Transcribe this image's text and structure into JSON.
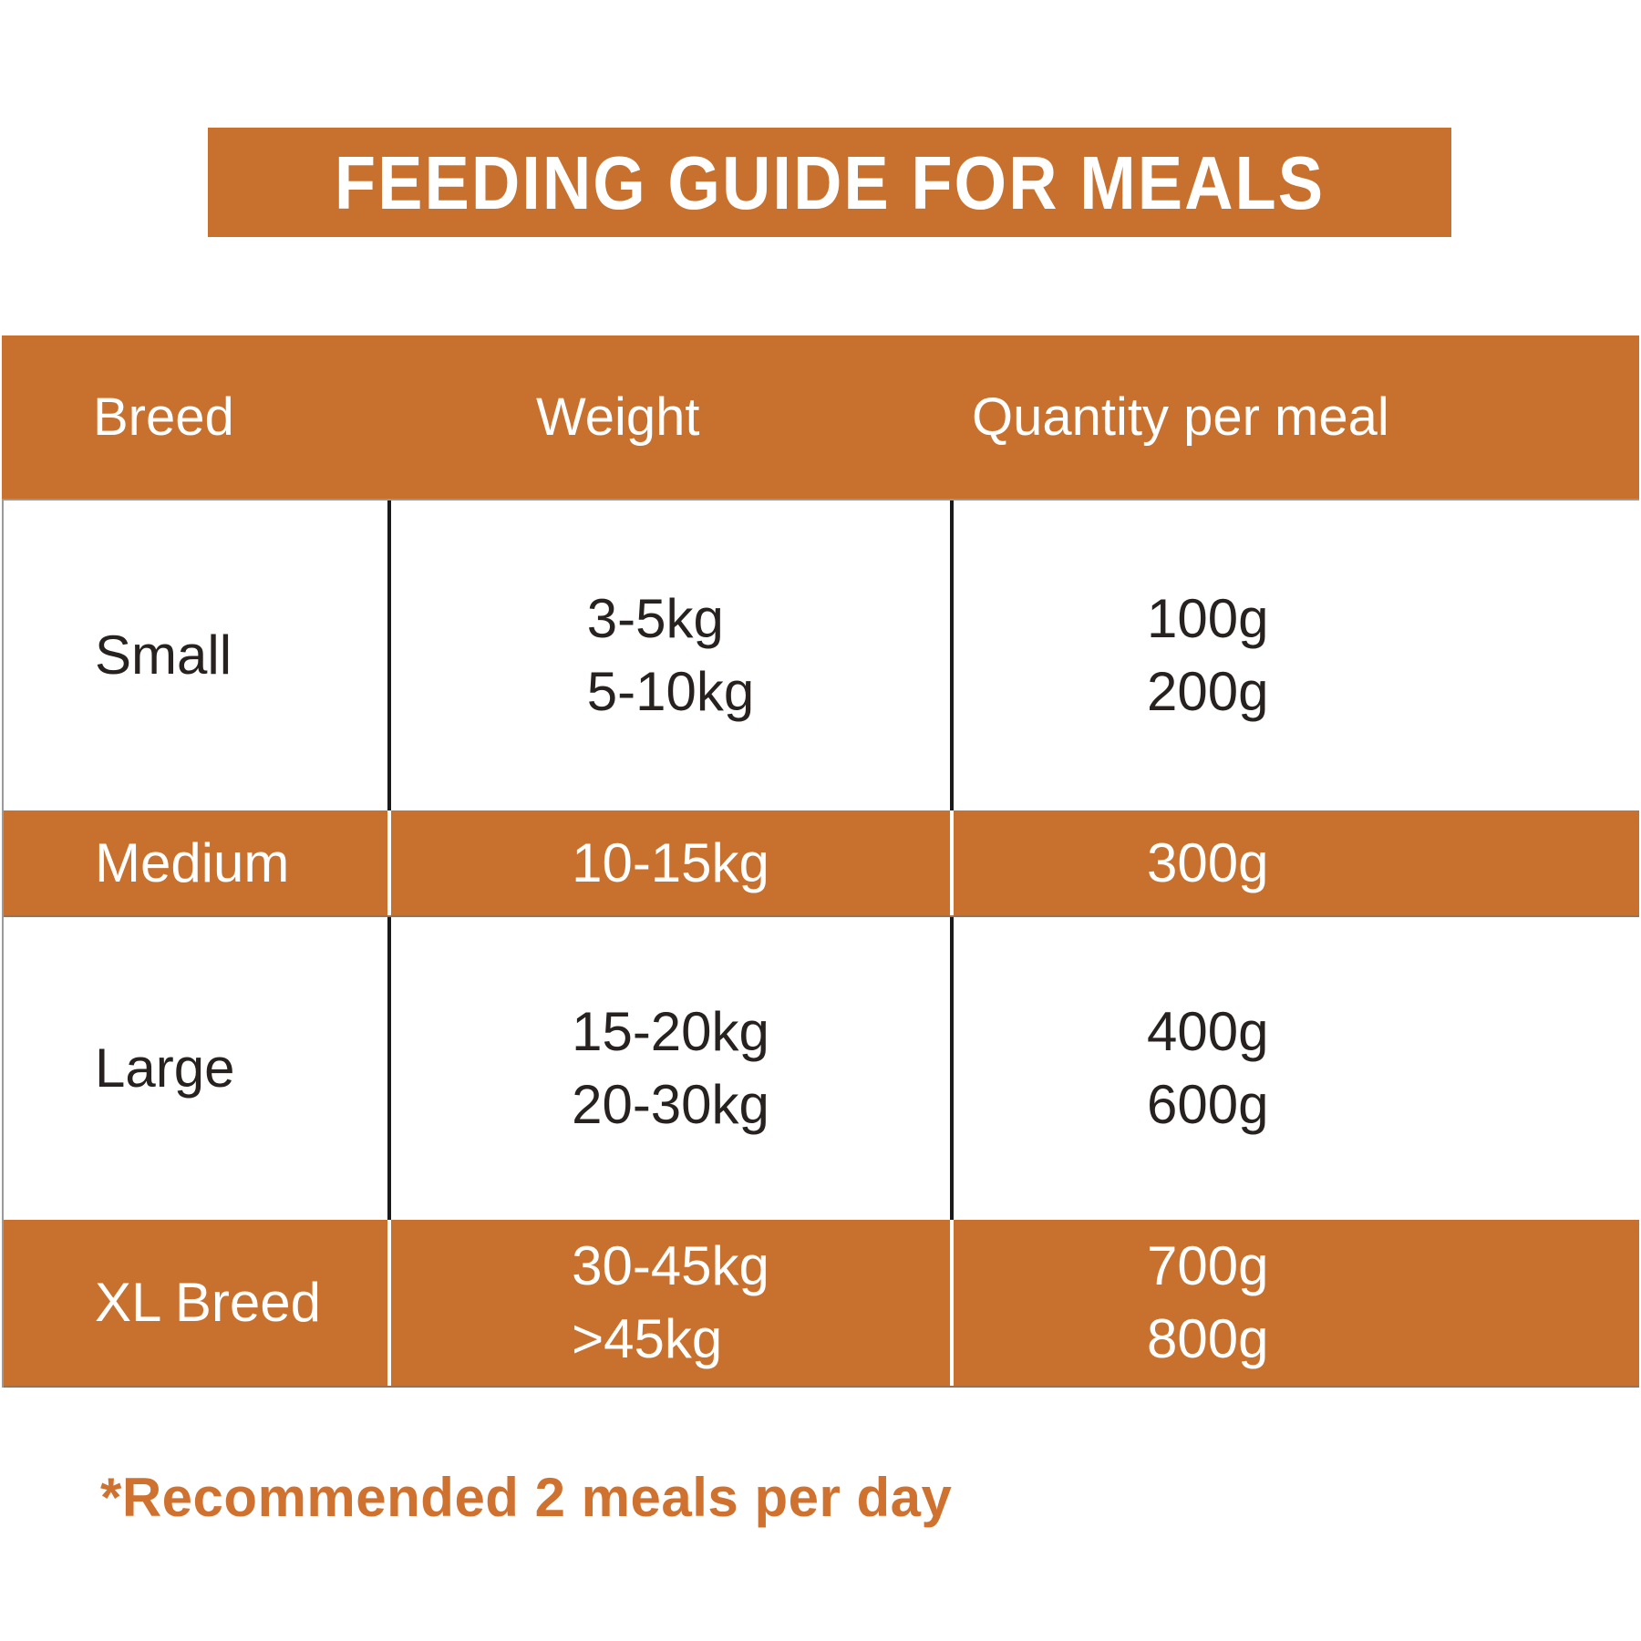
{
  "title": "FEEDING GUIDE FOR MEALS",
  "footnote": "*Recommended 2 meals per day",
  "colors": {
    "accent_orange": "#C8702E",
    "footnote_orange": "#D0722F",
    "text_dark": "#272220",
    "banner_text": "#FFFFFF",
    "divider_black": "#1A1A1A",
    "divider_white": "#FFFFFF"
  },
  "chart_data": {
    "type": "table",
    "title": "FEEDING GUIDE FOR MEALS",
    "columns": [
      "Breed",
      "Weight",
      "Quantity per meal"
    ],
    "rows": [
      [
        "Small",
        "3-5kg / 5-10kg",
        "100g / 200g"
      ],
      [
        "Medium",
        "10-15kg",
        "300g"
      ],
      [
        "Large",
        "15-20kg / 20-30kg",
        "400g / 600g"
      ],
      [
        "XL Breed",
        "30-45kg / >45kg",
        "700g / 800g"
      ]
    ],
    "highlighted_rows": [
      "Medium",
      "XL Breed"
    ],
    "note": "*Recommended 2 meals per day"
  },
  "table": {
    "headers": [
      "Breed",
      "Weight",
      "Quantity per meal"
    ],
    "rows": [
      {
        "breed": "Small",
        "weights": [
          "3-5kg",
          "5-10kg"
        ],
        "quantities": [
          "100g",
          "200g"
        ],
        "highlight": false
      },
      {
        "breed": "Medium",
        "weights": [
          "10-15kg"
        ],
        "quantities": [
          "300g"
        ],
        "highlight": true
      },
      {
        "breed": "Large",
        "weights": [
          "15-20kg",
          "20-30kg"
        ],
        "quantities": [
          "400g",
          "600g"
        ],
        "highlight": false
      },
      {
        "breed": "XL Breed",
        "weights": [
          "30-45kg",
          ">45kg"
        ],
        "quantities": [
          "700g",
          "800g"
        ],
        "highlight": true
      }
    ]
  }
}
